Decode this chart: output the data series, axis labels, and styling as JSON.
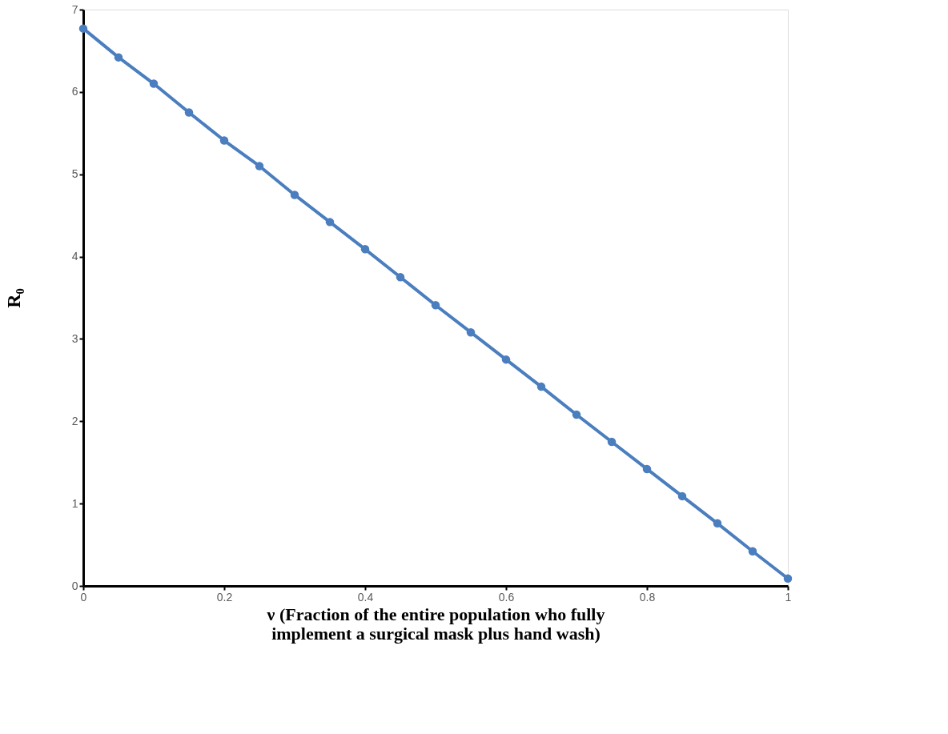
{
  "chart_data": {
    "type": "line",
    "xlabel": "ν (Fraction of the entire population who fully\nimplement a surgical mask plus hand wash)",
    "ylabel": "R₀",
    "x": [
      0,
      0.05,
      0.1,
      0.15,
      0.2,
      0.25,
      0.3,
      0.35,
      0.4,
      0.45,
      0.5,
      0.55,
      0.6,
      0.65,
      0.7,
      0.75,
      0.8,
      0.85,
      0.9,
      0.95,
      1
    ],
    "series": [
      {
        "color": "#4a7ebf",
        "values": [
          6.77,
          6.42,
          6.1,
          5.75,
          5.41,
          5.1,
          4.75,
          4.42,
          4.09,
          3.75,
          3.41,
          3.08,
          2.75,
          2.42,
          2.08,
          1.75,
          1.42,
          1.09,
          0.76,
          0.42,
          0.09
        ]
      }
    ],
    "xlim": [
      0,
      1
    ],
    "xticks": [
      0,
      0.2,
      0.4,
      0.6,
      0.8,
      1
    ],
    "ylim": [
      0,
      7
    ],
    "yticks": [
      0,
      1,
      2,
      3,
      4,
      5,
      6,
      7
    ],
    "grid": false,
    "legend": false,
    "marker": "circle",
    "line_style": "solid"
  }
}
